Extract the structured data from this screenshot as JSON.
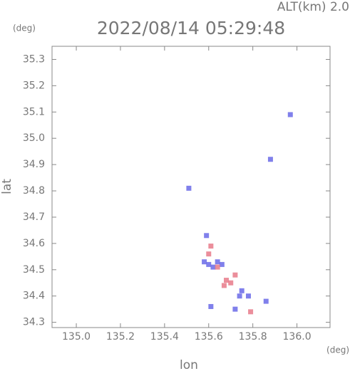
{
  "chart_data": {
    "type": "scatter",
    "title": "2022/08/14 05:29:48",
    "altitude_label": "ALT(km) 2.0",
    "y_unit": "(deg)",
    "x_unit": "(deg)",
    "x_label": "lon",
    "y_label": "lat",
    "xlim": [
      134.89,
      136.15
    ],
    "ylim": [
      34.28,
      35.35
    ],
    "xticks": [
      {
        "value": 135,
        "label": "135.0"
      },
      135.2,
      135.4,
      135.6,
      135.8,
      {
        "value": 136,
        "label": "136.0"
      }
    ],
    "yticks": [
      34.3,
      34.4,
      34.5,
      34.6,
      34.7,
      34.8,
      34.9,
      {
        "value": 35,
        "label": "35.0"
      },
      35.1,
      35.2,
      35.3
    ],
    "series": [
      {
        "color": "#6a6ae8",
        "x": [
          135.97,
          135.88,
          135.51,
          135.59,
          135.58,
          135.6,
          135.64,
          135.62,
          135.66,
          135.75,
          135.74,
          135.72,
          135.86,
          135.61,
          135.78
        ],
        "values": [
          35.09,
          34.92,
          34.81,
          34.63,
          34.53,
          34.52,
          34.53,
          34.51,
          34.52,
          34.42,
          34.4,
          34.35,
          34.38,
          34.36,
          34.4
        ]
      },
      {
        "color": "#e87a8a",
        "x": [
          135.61,
          135.6,
          135.64,
          135.68,
          135.67,
          135.72,
          135.79,
          135.7
        ],
        "values": [
          34.59,
          34.56,
          34.51,
          34.46,
          34.44,
          34.48,
          34.34,
          34.45
        ]
      }
    ]
  }
}
